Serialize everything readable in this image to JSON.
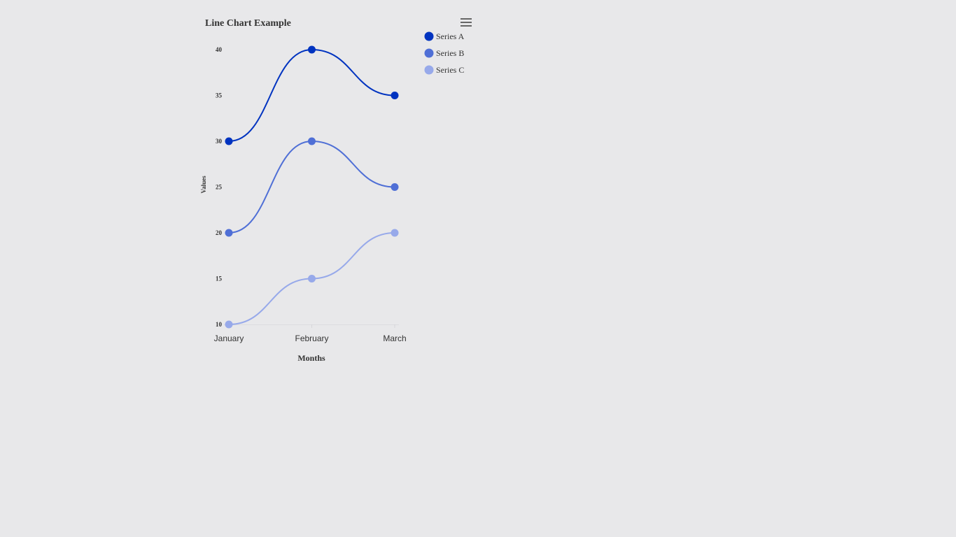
{
  "chart_data": {
    "type": "line",
    "title": "Line Chart Example",
    "xlabel": "Months",
    "ylabel": "Values",
    "categories": [
      "January",
      "February",
      "March"
    ],
    "y_ticks": [
      10,
      15,
      20,
      25,
      30,
      35,
      40
    ],
    "ylim": [
      10,
      40
    ],
    "grid": false,
    "legend_position": "top-right",
    "curve": "smooth",
    "series": [
      {
        "name": "Series A",
        "values": [
          30,
          40,
          35
        ],
        "color": "#0033c0"
      },
      {
        "name": "Series B",
        "values": [
          20,
          30,
          25
        ],
        "color": "#4f6fd6"
      },
      {
        "name": "Series C",
        "values": [
          10,
          15,
          20
        ],
        "color": "#97a9ea"
      }
    ]
  },
  "toolbar": {
    "menu_icon": "hamburger-menu-icon"
  }
}
